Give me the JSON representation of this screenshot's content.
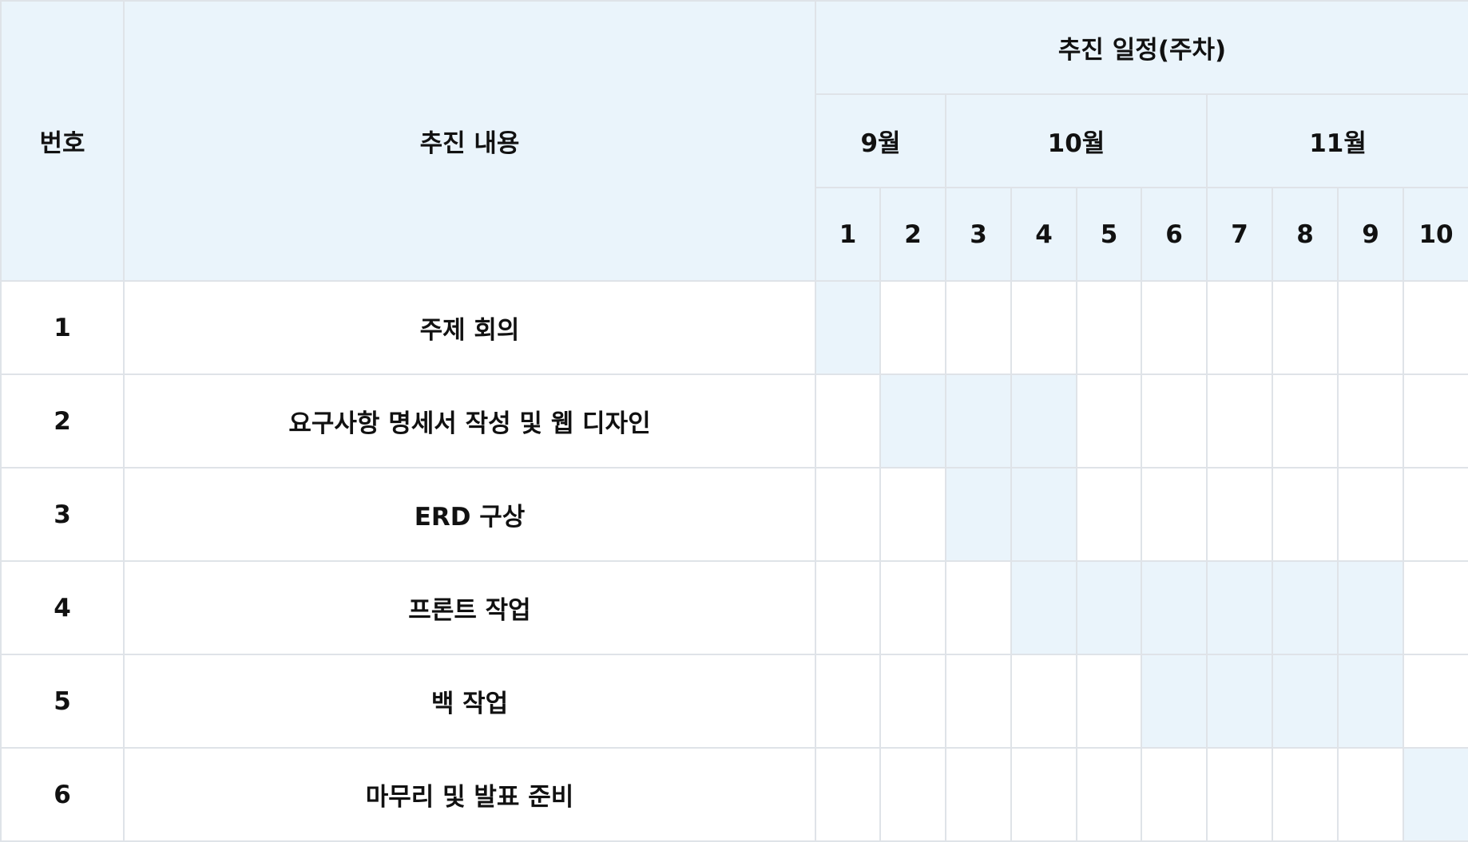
{
  "header": {
    "number_label": "번호",
    "content_label": "추진 내용",
    "schedule_label": "추진 일정(주차)",
    "months": [
      {
        "label": "9월",
        "weeks": 2
      },
      {
        "label": "10월",
        "weeks": 4
      },
      {
        "label": "11월",
        "weeks": 4
      }
    ],
    "weeks": [
      "1",
      "2",
      "3",
      "4",
      "5",
      "6",
      "7",
      "8",
      "9",
      "10"
    ]
  },
  "tasks": [
    {
      "no": "1",
      "name": "주제 회의",
      "start_week": 1,
      "end_week": 1
    },
    {
      "no": "2",
      "name": "요구사항 명세서 작성 및 웹 디자인",
      "start_week": 2,
      "end_week": 4
    },
    {
      "no": "3",
      "name": "ERD 구상",
      "start_week": 3,
      "end_week": 4
    },
    {
      "no": "4",
      "name": "프론트 작업",
      "start_week": 4,
      "end_week": 9
    },
    {
      "no": "5",
      "name": "백 작업",
      "start_week": 6,
      "end_week": 9
    },
    {
      "no": "6",
      "name": "마무리 및 발표 준비",
      "start_week": 10,
      "end_week": 10
    }
  ],
  "colors": {
    "header_bg": "#eaf4fb",
    "bar_fill": "#eaf4fb",
    "grid_line": "#dfe3e8"
  }
}
